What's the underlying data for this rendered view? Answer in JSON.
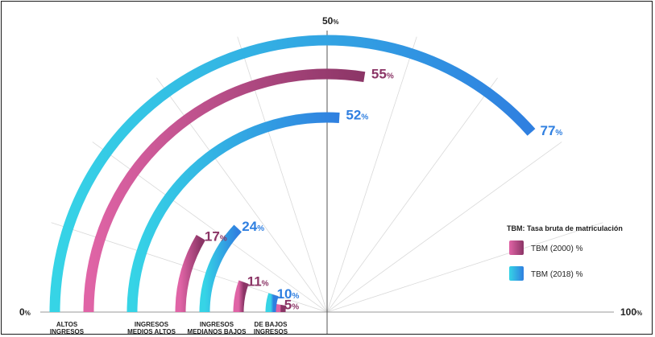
{
  "chart_data": {
    "type": "radial-bar",
    "scale": {
      "min": 0,
      "mid": 50,
      "max": 100,
      "labels": {
        "min": "0",
        "mid": "50",
        "max": "100"
      },
      "unit": "%"
    },
    "categories": [
      {
        "label": [
          "ALTOS",
          "INGRESOS"
        ],
        "values": [
          55,
          77
        ]
      },
      {
        "label": [
          "INGRESOS",
          "MEDIOS ALTOS"
        ],
        "values": [
          17,
          52
        ]
      },
      {
        "label": [
          "INGRESOS",
          "MEDIANOS BAJOS"
        ],
        "values": [
          11,
          24
        ]
      },
      {
        "label": [
          "DE BAJOS",
          "INGRESOS"
        ],
        "values": [
          5,
          10
        ]
      }
    ],
    "series": [
      {
        "name": "TBM (2000) %",
        "color_start": "#e064a6",
        "color_end": "#8b3566"
      },
      {
        "name": "TBM (2018) %",
        "color_start": "#36d4e6",
        "color_end": "#2f7fe0"
      }
    ],
    "legend": {
      "title": "TBM: Tasa bruta de matriculación",
      "position": "right"
    },
    "grid": true
  }
}
